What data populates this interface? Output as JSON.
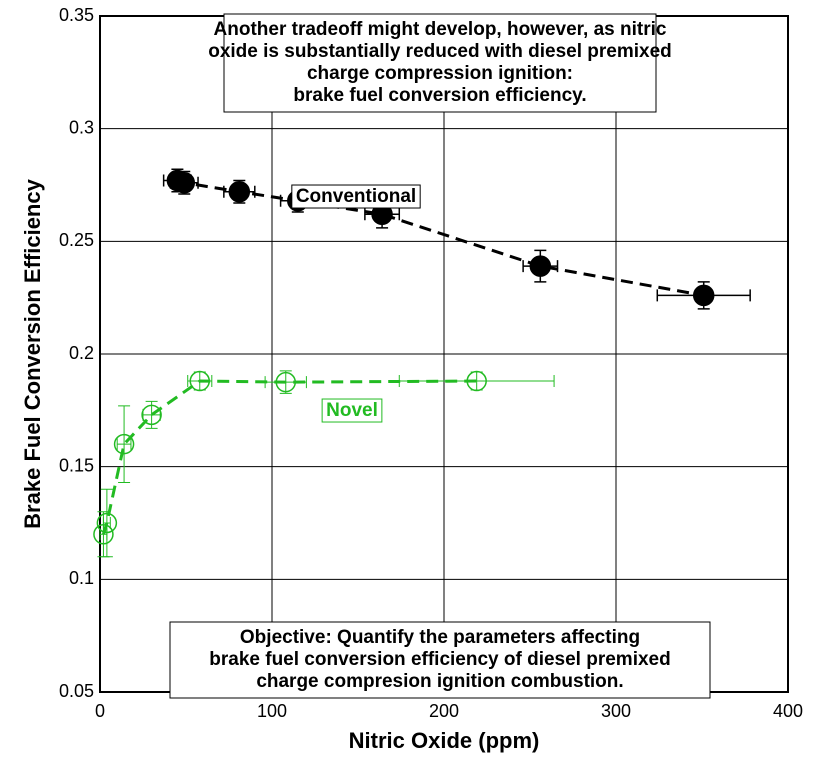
{
  "chart_data": {
    "type": "scatter",
    "xlabel": "Nitric Oxide (ppm)",
    "ylabel": "Brake Fuel Conversion Efficiency",
    "xlim": [
      0,
      400
    ],
    "xticks": [
      0,
      100,
      200,
      300,
      400
    ],
    "ylim": [
      0.05,
      0.35
    ],
    "yticks": [
      0.05,
      0.1,
      0.15,
      0.2,
      0.25,
      0.3,
      0.35
    ],
    "grid": true,
    "annotations": [
      [
        "Another tradeoff might develop, however, as nitric",
        "oxide is substantially reduced with diesel premixed",
        "charge compression ignition:",
        "brake fuel conversion efficiency."
      ],
      [
        "Objective: Quantify the parameters affecting",
        "brake fuel conversion efficiency of diesel premixed",
        "charge compresion ignition combustion."
      ]
    ],
    "series": [
      {
        "name": "Conventional",
        "color": "#000000",
        "filled": true,
        "x": [
          45,
          49,
          81,
          115,
          164,
          256,
          351
        ],
        "values": [
          0.277,
          0.276,
          0.272,
          0.268,
          0.262,
          0.239,
          0.226
        ],
        "x_errors": [
          8,
          8,
          9,
          10,
          10,
          10,
          27
        ],
        "y_errors": [
          0.005,
          0.005,
          0.005,
          0.005,
          0.006,
          0.007,
          0.006
        ]
      },
      {
        "name": "Novel",
        "color": "#22bb22",
        "filled": false,
        "x": [
          2,
          4,
          14,
          30,
          58,
          108,
          219
        ],
        "values": [
          0.12,
          0.125,
          0.16,
          0.173,
          0.188,
          0.1875,
          0.188
        ],
        "x_errors": [
          2,
          2,
          4,
          5,
          7,
          12,
          45
        ],
        "y_errors": [
          0.01,
          0.015,
          0.017,
          0.006,
          0.004,
          0.005,
          0.004
        ]
      }
    ]
  }
}
